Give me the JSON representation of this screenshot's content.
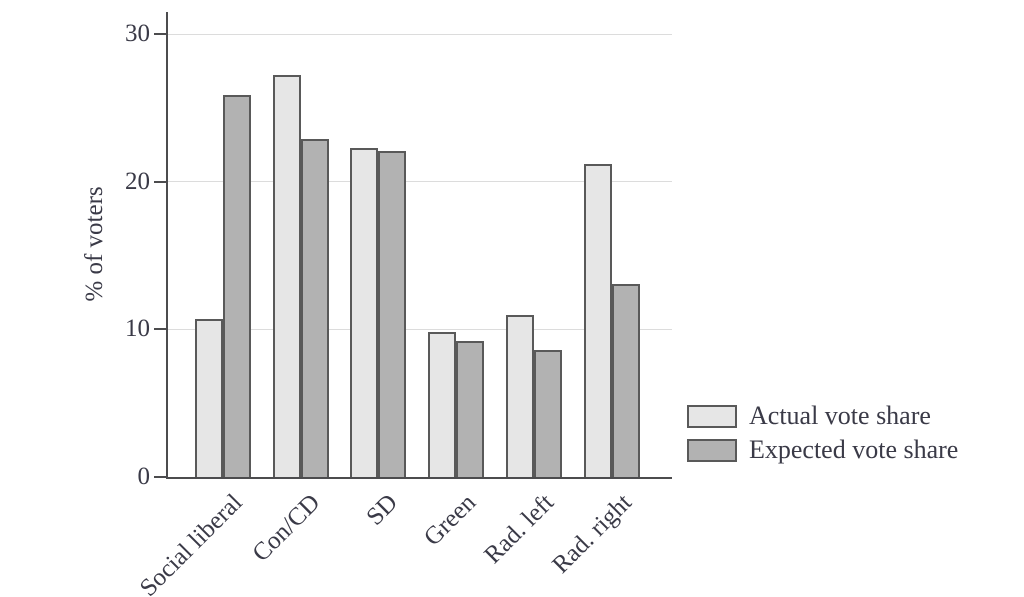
{
  "figure": {
    "background": "#ffffff",
    "text_color": "#3a3a47",
    "axis_color": "#4c4c4e",
    "gridline_color": "#dcdcdc",
    "bar_border_color": "#595959"
  },
  "chart_data": {
    "type": "bar",
    "title": "",
    "xlabel": "",
    "ylabel": "% of voters",
    "categories": [
      "Social liberal",
      "Con/CD",
      "SD",
      "Green",
      "Rad. left",
      "Rad. right"
    ],
    "series": [
      {
        "name": "Actual vote share",
        "color": "#e6e6e6",
        "values": [
          10.7,
          27.2,
          22.3,
          9.8,
          11.0,
          21.2
        ]
      },
      {
        "name": "Expected vote share",
        "color": "#b2b2b2",
        "values": [
          25.9,
          22.9,
          22.1,
          9.2,
          8.6,
          13.1
        ]
      }
    ],
    "yticks": [
      0,
      10,
      20,
      30
    ],
    "ytick_labels": [
      "0",
      "10",
      "20",
      "30"
    ],
    "ylim": [
      0,
      31.5
    ],
    "grid": true,
    "grouped": true,
    "x_tick_label_rotation_deg": 45,
    "legend_position": "outside-right-bottom"
  }
}
